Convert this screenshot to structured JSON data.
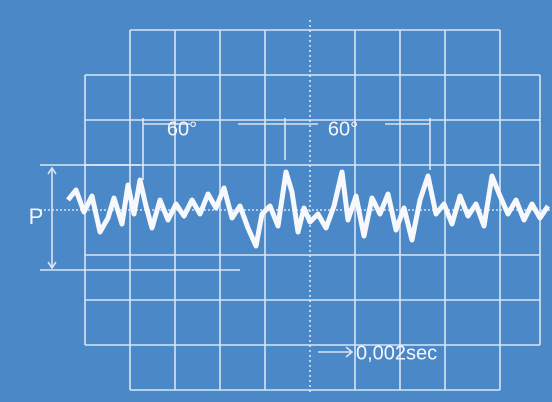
{
  "labels": {
    "angle_left": "60°",
    "angle_right": "60°",
    "amplitude": "P",
    "time_scale": "0,002sec"
  }
}
